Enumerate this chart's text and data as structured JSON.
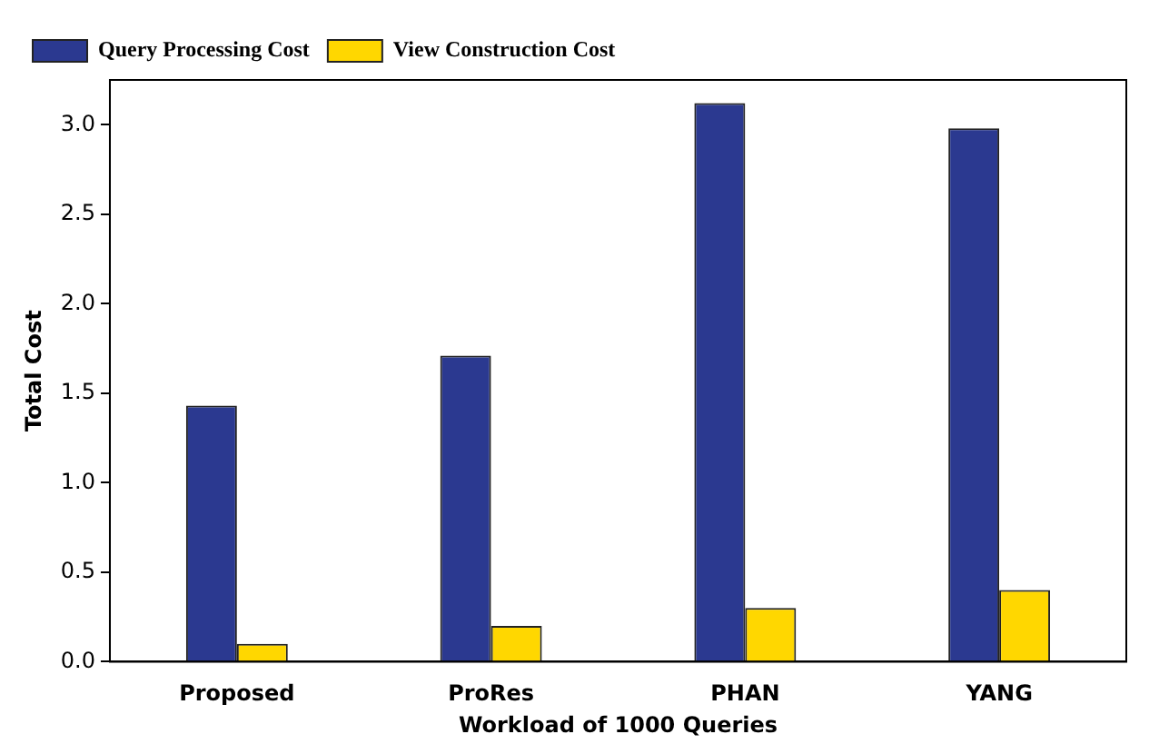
{
  "chart_data": {
    "type": "bar",
    "xlabel": "Workload of 1000 Queries",
    "ylabel": "Total Cost",
    "categories": [
      "Proposed",
      "ProRes",
      "PHAN",
      "YANG"
    ],
    "series": [
      {
        "name": "Query Processing Cost",
        "color": "#2b3990",
        "values": [
          1.43,
          1.71,
          3.12,
          2.98
        ]
      },
      {
        "name": "View Construction Cost",
        "color": "#ffd700",
        "values": [
          0.1,
          0.2,
          0.3,
          0.4
        ]
      }
    ],
    "ylim": [
      0,
      3.25
    ],
    "yticks": [
      {
        "value": 0,
        "label": "0.0"
      },
      {
        "value": 0.5,
        "label": "0.5"
      },
      {
        "value": 1,
        "label": "1.0"
      },
      {
        "value": 1.5,
        "label": "1.5"
      },
      {
        "value": 2,
        "label": "2.0"
      },
      {
        "value": 2.5,
        "label": "2.5"
      },
      {
        "value": 3,
        "label": "3.0"
      }
    ],
    "legend": "top left"
  }
}
